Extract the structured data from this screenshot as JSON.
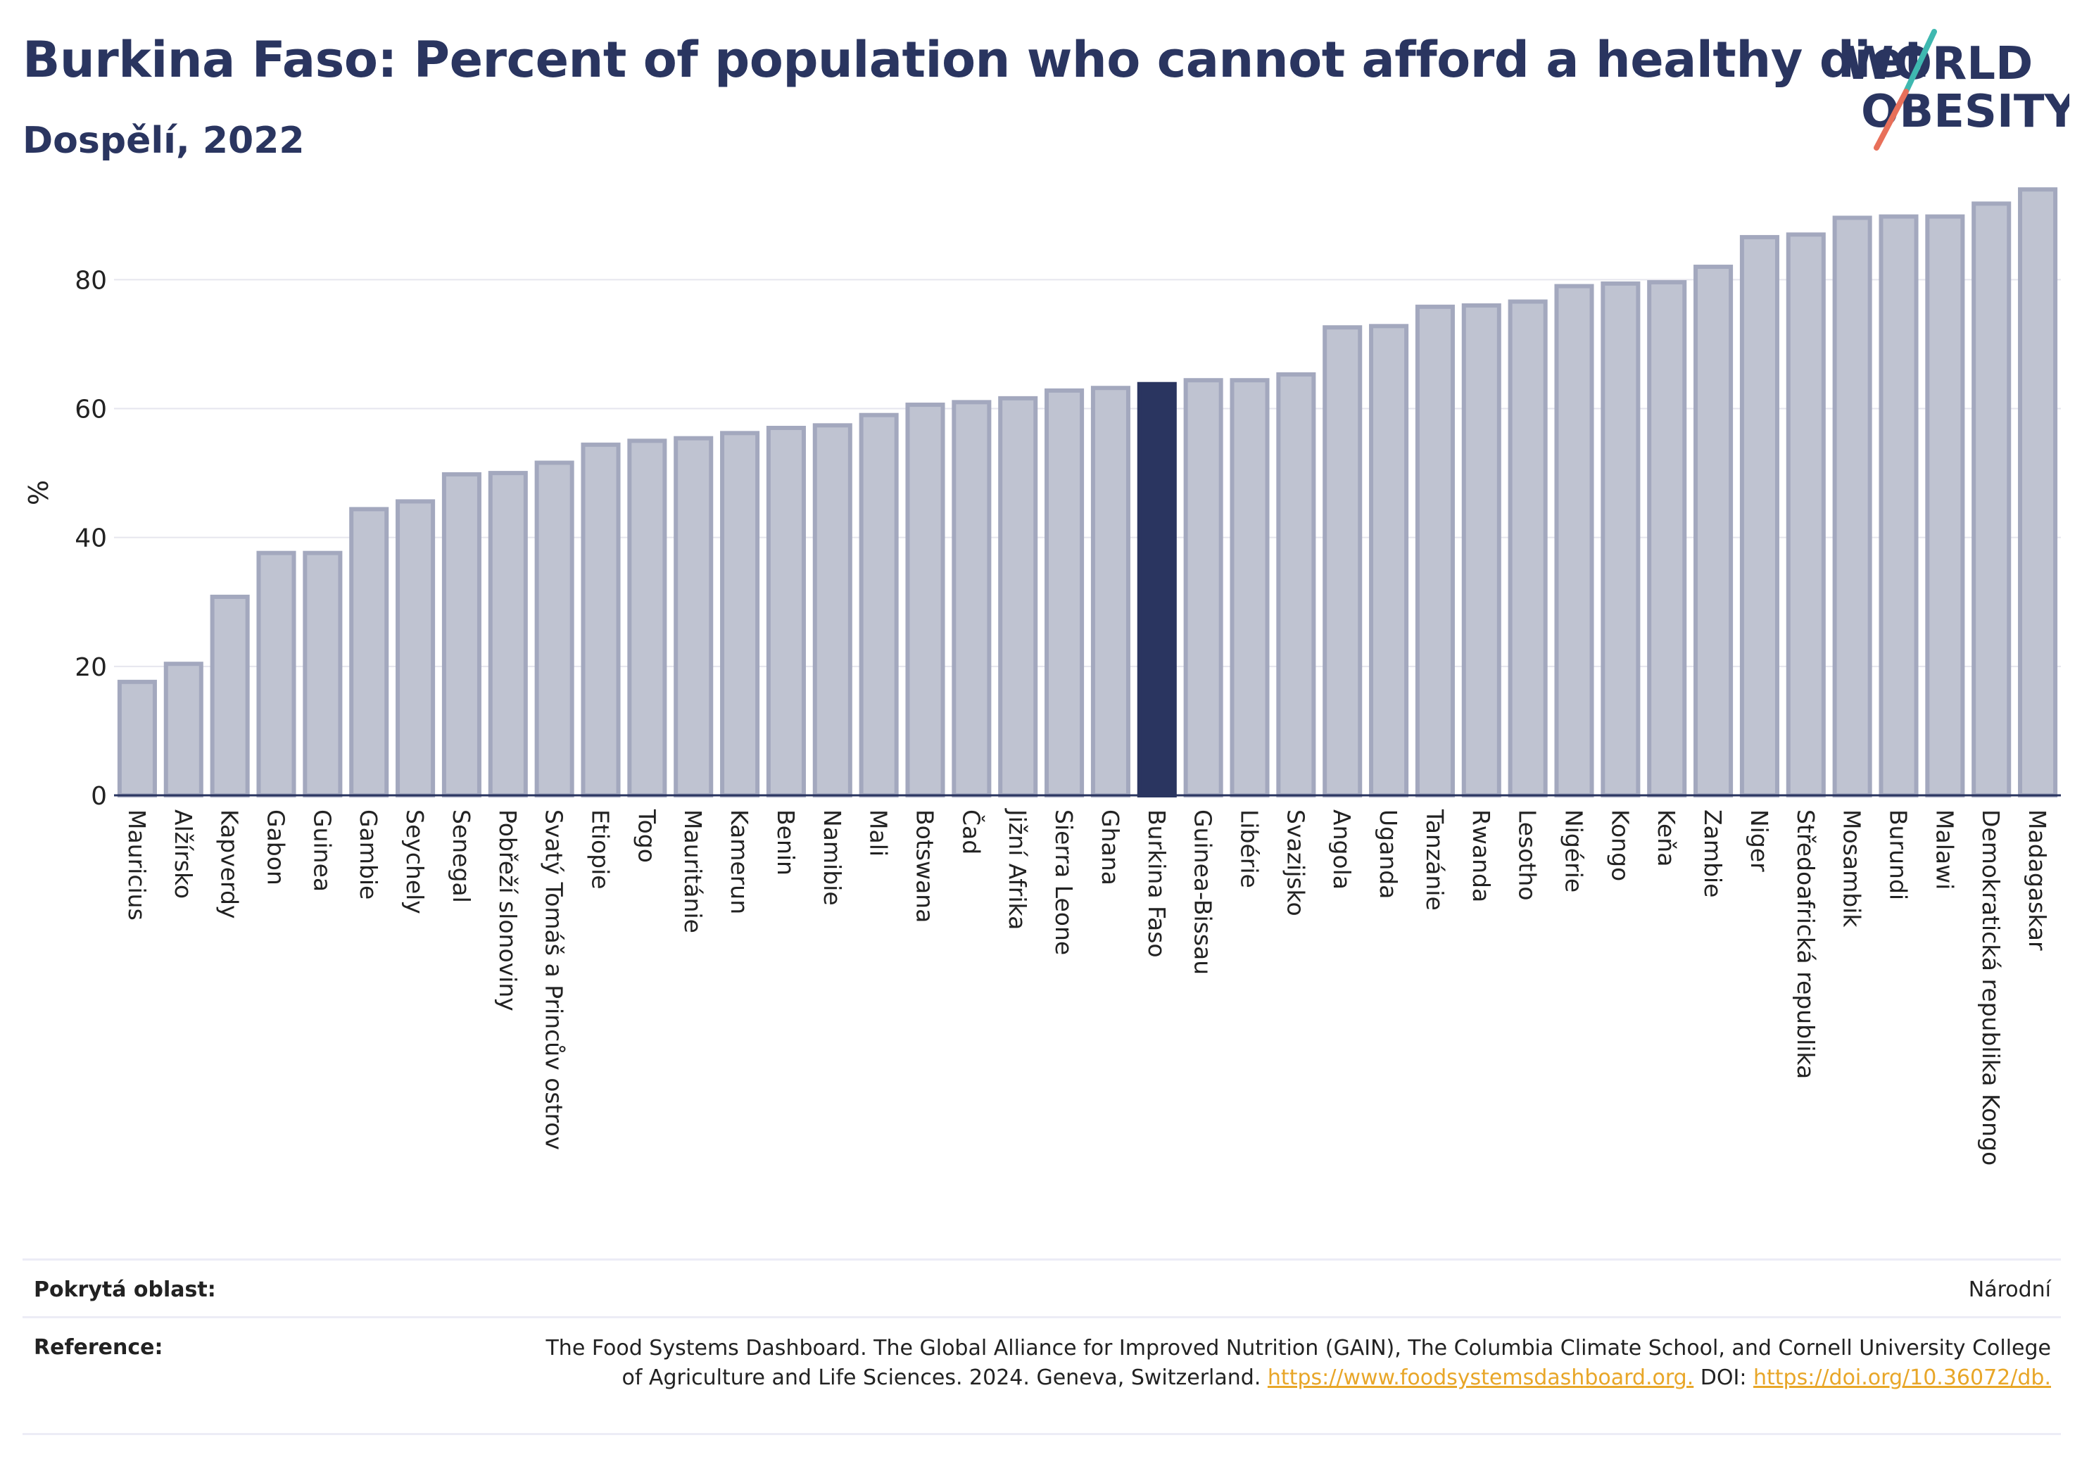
{
  "header": {
    "title": "Burkina Faso: Percent of population who cannot afford a healthy diet",
    "subtitle": "Dospělí, 2022"
  },
  "logo": {
    "line1": "WORLD",
    "line2": "OBESITY",
    "colors": {
      "text": "#2a3560",
      "slash_teal": "#3fb8b0",
      "slash_coral": "#e8705a"
    }
  },
  "colors": {
    "bar_default": "#bfc3d1",
    "bar_default_border": "#a3a8be",
    "bar_highlight": "#2a3560",
    "axis": "#2a3560",
    "grid": "#e6e6ee",
    "link": "#e8a628"
  },
  "chart_data": {
    "type": "bar",
    "ylabel": "%",
    "ylim": [
      0,
      95
    ],
    "yticks": [
      0,
      20,
      40,
      60,
      80
    ],
    "grid": true,
    "highlight": "Burkina Faso",
    "categories": [
      "Mauricius",
      "Alžírsko",
      "Kapverdy",
      "Gabon",
      "Guinea",
      "Gambie",
      "Seychely",
      "Senegal",
      "Pobřeží slonoviny",
      "Svatý Tomáš a Princův ostrov",
      "Etiopie",
      "Togo",
      "Mauritánie",
      "Kamerun",
      "Benin",
      "Namibie",
      "Mali",
      "Botswana",
      "Čad",
      "Jižní Afrika",
      "Sierra Leone",
      "Ghana",
      "Burkina Faso",
      "Guinea-Bissau",
      "Libérie",
      "Svazijsko",
      "Angola",
      "Uganda",
      "Tanzánie",
      "Rwanda",
      "Lesotho",
      "Nigérie",
      "Kongo",
      "Keňa",
      "Zambie",
      "Niger",
      "Středoafrická republika",
      "Mosambik",
      "Burundi",
      "Malawi",
      "Demokratická republika Kongo",
      "Madagaskar"
    ],
    "values": [
      17.6,
      20.4,
      30.8,
      37.6,
      37.6,
      44.4,
      45.6,
      49.8,
      50.0,
      51.6,
      54.4,
      55.0,
      55.4,
      56.2,
      57.0,
      57.4,
      59.0,
      60.6,
      61.0,
      61.6,
      62.8,
      63.2,
      63.8,
      64.4,
      64.4,
      65.3,
      72.6,
      72.8,
      75.8,
      76.0,
      76.6,
      79.0,
      79.4,
      79.6,
      82.0,
      86.6,
      87.0,
      89.6,
      89.8,
      89.8,
      91.8,
      94.0
    ]
  },
  "meta": {
    "coverage_label": "Pokrytá oblast:",
    "coverage_value": "Národní",
    "reference_label": "Reference:",
    "reference_text": "The Food Systems Dashboard. The Global Alliance for Improved Nutrition (GAIN), The Columbia Climate School, and Cornell University College of Agriculture and Life Sciences. 2024. Geneva, Switzerland.",
    "reference_url": "https://www.foodsystemsdashboard.org.",
    "reference_doi_label": "DOI:",
    "reference_doi": "https://doi.org/10.36072/db."
  }
}
